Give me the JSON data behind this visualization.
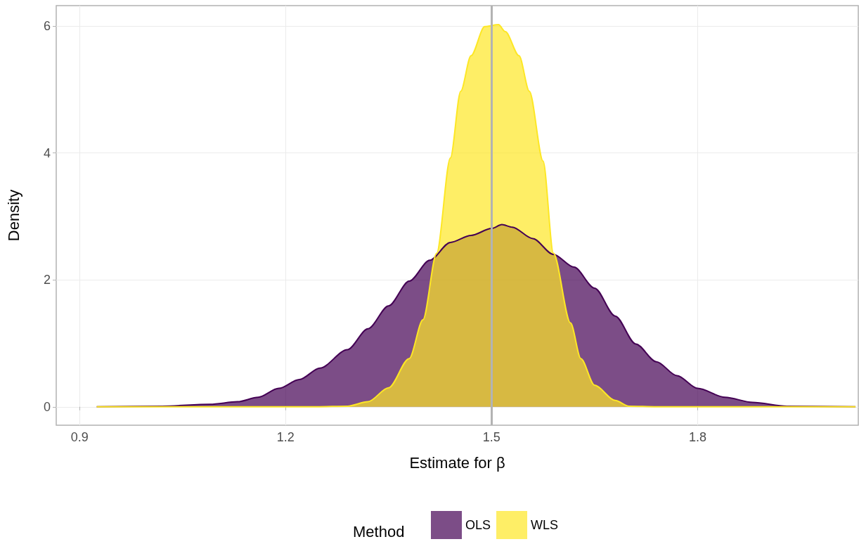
{
  "chart_data": {
    "type": "area",
    "xlabel": "Estimate for β",
    "ylabel": "Density",
    "legend_title": "Method",
    "xlim": [
      0.866,
      2.034
    ],
    "xticks": [
      0.9,
      1.2,
      1.5,
      1.8
    ],
    "ylim": [
      -0.29,
      6.32
    ],
    "yticks": [
      0,
      2,
      4,
      6
    ],
    "grid": true,
    "legend": "bottom",
    "ref_lines": [
      {
        "axis": "x",
        "value": 1.5,
        "color": "#b3b3b3"
      }
    ],
    "series": [
      {
        "name": "OLS",
        "color": "#440154",
        "x": [
          0.925,
          1.02,
          1.09,
          1.13,
          1.16,
          1.19,
          1.22,
          1.25,
          1.29,
          1.32,
          1.35,
          1.38,
          1.41,
          1.44,
          1.47,
          1.5,
          1.515,
          1.53,
          1.56,
          1.59,
          1.62,
          1.65,
          1.68,
          1.71,
          1.74,
          1.77,
          1.8,
          1.84,
          1.88,
          1.93,
          2.03
        ],
        "values": [
          0,
          0.01,
          0.04,
          0.08,
          0.15,
          0.29,
          0.43,
          0.61,
          0.9,
          1.23,
          1.59,
          1.98,
          2.31,
          2.59,
          2.7,
          2.81,
          2.87,
          2.83,
          2.65,
          2.4,
          2.2,
          1.87,
          1.43,
          0.99,
          0.71,
          0.49,
          0.29,
          0.15,
          0.07,
          0.01,
          0
        ]
      },
      {
        "name": "WLS",
        "color": "#fde725",
        "x": [
          0.925,
          1.245,
          1.29,
          1.32,
          1.35,
          1.38,
          1.4,
          1.42,
          1.44,
          1.455,
          1.47,
          1.49,
          1.51,
          1.52,
          1.54,
          1.555,
          1.575,
          1.59,
          1.615,
          1.63,
          1.65,
          1.68,
          1.7,
          1.74,
          2.03
        ],
        "values": [
          0,
          0,
          0.01,
          0.08,
          0.3,
          0.76,
          1.37,
          2.42,
          3.92,
          4.97,
          5.53,
          5.99,
          6.02,
          5.91,
          5.53,
          4.97,
          3.87,
          2.42,
          1.32,
          0.76,
          0.34,
          0.1,
          0.01,
          0,
          0
        ]
      }
    ]
  }
}
